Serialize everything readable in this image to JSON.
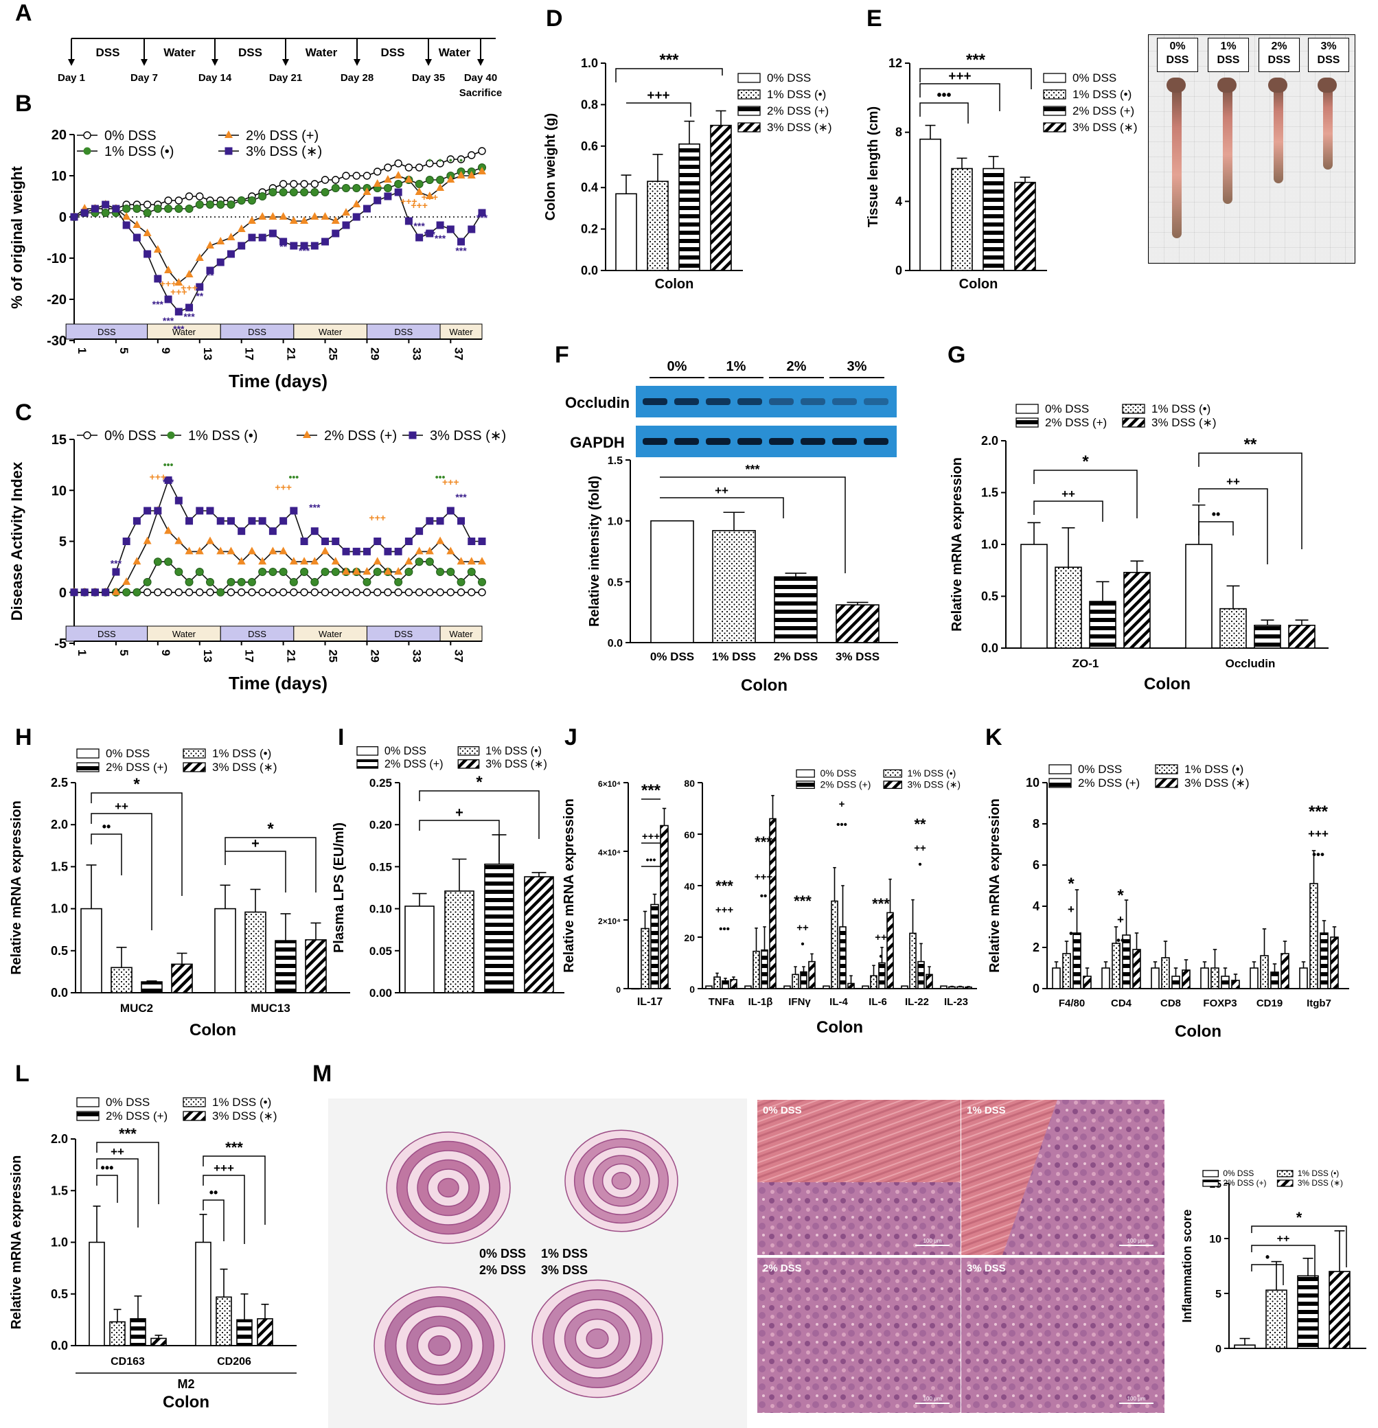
{
  "panel_labels": [
    "A",
    "B",
    "C",
    "D",
    "E",
    "F",
    "G",
    "H",
    "I",
    "J",
    "K",
    "L",
    "M"
  ],
  "groups": [
    "0% DSS",
    "1% DSS (•)",
    "2% DSS (+)",
    "3% DSS (∗)"
  ],
  "colors": {
    "g0": "#000000",
    "g1": "#3a8a2a",
    "g2": "#f08a24",
    "g3": "#3b1f8c",
    "dss_band": "#c9c6ee",
    "water_band": "#f6ecd7"
  },
  "timeline": {
    "segments": [
      "DSS",
      "Water",
      "DSS",
      "Water",
      "DSS",
      "Water"
    ],
    "days": [
      "Day 1",
      "Day 7",
      "Day 14",
      "Day 21",
      "Day 28",
      "Day 35",
      "Day 40"
    ],
    "end_note": "Sacrifice"
  },
  "chart_data": [
    {
      "panel": "B",
      "type": "line",
      "xlabel": "Time (days)",
      "ylabel": "% of original weight",
      "xlim": [
        1,
        40
      ],
      "ylim": [
        -30,
        20
      ],
      "xticks": [
        1,
        5,
        9,
        13,
        17,
        21,
        25,
        29,
        33,
        37
      ],
      "yticks": [
        -30,
        -20,
        -10,
        0,
        10,
        20
      ],
      "legend": [
        "0% DSS",
        "1% DSS (•)",
        "2% DSS (+)",
        "3% DSS (∗)"
      ],
      "bands": [
        "DSS",
        "Water",
        "DSS",
        "Water",
        "DSS",
        "Water"
      ],
      "series": [
        {
          "name": "0% DSS",
          "values": [
            0,
            1,
            2,
            2,
            2,
            3,
            3,
            3,
            3,
            4,
            4,
            5,
            5,
            4,
            4,
            4,
            4,
            5,
            6,
            7,
            8,
            8,
            8,
            8,
            9,
            9,
            10,
            10,
            10,
            11,
            12,
            13,
            12,
            12,
            13,
            13,
            14,
            14,
            15,
            16
          ]
        },
        {
          "name": "1% DSS (•)",
          "values": [
            0,
            1,
            1,
            1,
            1,
            2,
            2,
            1,
            2,
            2,
            2,
            2,
            3,
            3,
            3,
            3,
            4,
            4,
            5,
            6,
            6,
            6,
            6,
            6,
            6,
            7,
            7,
            7,
            7,
            7,
            7,
            8,
            9,
            8,
            9,
            9,
            10,
            11,
            11,
            12
          ]
        },
        {
          "name": "2% DSS (+)",
          "values": [
            0,
            2,
            2,
            3,
            2,
            0,
            -2,
            -4,
            -8,
            -13,
            -16,
            -14,
            -10,
            -7,
            -6,
            -5,
            -3,
            -1,
            0,
            0,
            0,
            -1,
            -1,
            0,
            0,
            -1,
            1,
            3,
            6,
            8,
            9,
            10,
            9,
            6,
            5,
            7,
            9,
            10,
            10,
            11
          ]
        },
        {
          "name": "3% DSS (∗)",
          "values": [
            0,
            1,
            2,
            3,
            2,
            -2,
            -5,
            -9,
            -15,
            -20,
            -23,
            -22,
            -17,
            -13,
            -11,
            -9,
            -7,
            -5,
            -5,
            -4,
            -6,
            -7,
            -7,
            -7,
            -6,
            -4,
            -2,
            0,
            2,
            4,
            5,
            6,
            -1,
            -5,
            -4,
            -2,
            -3,
            -6,
            -3,
            1
          ]
        }
      ]
    },
    {
      "panel": "C",
      "type": "line",
      "xlabel": "Time (days)",
      "ylabel": "Disease Activity Index",
      "xlim": [
        1,
        40
      ],
      "ylim": [
        -5,
        15
      ],
      "xticks": [
        1,
        5,
        9,
        13,
        17,
        21,
        25,
        29,
        33,
        37
      ],
      "yticks": [
        -5,
        0,
        5,
        10,
        15
      ],
      "legend": [
        "0% DSS",
        "1% DSS (•)",
        "2% DSS (+)",
        "3% DSS (∗)"
      ],
      "bands": [
        "DSS",
        "Water",
        "DSS",
        "Water",
        "DSS",
        "Water"
      ],
      "series": [
        {
          "name": "0% DSS",
          "values": [
            0,
            0,
            0,
            0,
            0,
            0,
            0,
            0,
            0,
            0,
            0,
            0,
            0,
            0,
            0,
            0,
            0,
            0,
            0,
            0,
            0,
            0,
            0,
            0,
            0,
            0,
            0,
            0,
            0,
            0,
            0,
            0,
            0,
            0,
            0,
            0,
            0,
            0,
            0,
            0
          ]
        },
        {
          "name": "1% DSS (•)",
          "values": [
            0,
            0,
            0,
            0,
            0,
            0,
            0,
            1,
            3,
            3,
            2,
            1,
            2,
            1,
            0,
            1,
            1,
            1,
            2,
            2,
            2,
            1,
            2,
            1,
            2,
            2,
            2,
            2,
            1,
            2,
            2,
            1,
            2,
            3,
            3,
            2,
            2,
            1,
            2,
            1
          ]
        },
        {
          "name": "2% DSS (+)",
          "values": [
            0,
            0,
            0,
            0,
            0,
            1,
            3,
            5,
            8,
            6,
            5,
            4,
            4,
            5,
            4,
            4,
            3,
            4,
            3,
            4,
            4,
            3,
            3,
            3,
            4,
            3,
            2,
            2,
            2,
            3,
            2,
            2,
            3,
            4,
            4,
            5,
            4,
            3,
            3,
            3
          ]
        },
        {
          "name": "3% DSS (∗)",
          "values": [
            0,
            0,
            0,
            0,
            2,
            5,
            7,
            8,
            8,
            11,
            9,
            7,
            8,
            8,
            7,
            7,
            6,
            7,
            7,
            6,
            7,
            8,
            5,
            6,
            5,
            5,
            4,
            4,
            4,
            5,
            4,
            4,
            5,
            6,
            7,
            7,
            8,
            7,
            5,
            5
          ]
        }
      ]
    },
    {
      "panel": "D",
      "type": "bar",
      "categories": [
        "0% DSS",
        "1% DSS (•)",
        "2% DSS (+)",
        "3% DSS (∗)"
      ],
      "values": [
        0.37,
        0.43,
        0.61,
        0.7
      ],
      "errors": [
        0.09,
        0.13,
        0.11,
        0.07
      ],
      "xlabel": "Colon",
      "ylabel": "Colon weight (g)",
      "ylim": [
        0,
        1.0
      ],
      "yticks": [
        "0.0",
        "0.2",
        "0.4",
        "0.6",
        "0.8",
        "1.0"
      ],
      "sig": [
        "+++",
        "***"
      ]
    },
    {
      "panel": "E",
      "type": "bar",
      "categories": [
        "0% DSS",
        "1% DSS (•)",
        "2% DSS (+)",
        "3% DSS (∗)"
      ],
      "values": [
        7.6,
        5.9,
        5.9,
        5.1
      ],
      "errors": [
        0.8,
        0.6,
        0.7,
        0.3
      ],
      "xlabel": "Colon",
      "ylabel": "Tissue length (cm)",
      "ylim": [
        0,
        12
      ],
      "yticks": [
        "0",
        "4",
        "8",
        "12"
      ],
      "sig": [
        "•••",
        "+++",
        "***"
      ]
    },
    {
      "panel": "F",
      "type": "bar",
      "categories": [
        "0% DSS",
        "1% DSS",
        "2% DSS",
        "3% DSS"
      ],
      "values": [
        1.0,
        0.92,
        0.54,
        0.31
      ],
      "errors": [
        0.0,
        0.15,
        0.03,
        0.02
      ],
      "xlabel": "Colon",
      "ylabel": "Relative intensity (fold)",
      "ylim": [
        0,
        1.5
      ],
      "yticks": [
        "0.0",
        "0.5",
        "1.0",
        "1.5"
      ],
      "blot_lanes": [
        "0%",
        "1%",
        "2%",
        "3%"
      ],
      "blot_rows": [
        "Occludin",
        "GAPDH"
      ],
      "sig": [
        "++",
        "***"
      ]
    },
    {
      "panel": "G",
      "type": "bar",
      "categories": [
        "ZO-1",
        "Occludin"
      ],
      "series": [
        {
          "name": "0% DSS",
          "values": [
            1.0,
            1.0
          ],
          "errors": [
            0.21,
            0.38
          ]
        },
        {
          "name": "1% DSS (•)",
          "values": [
            0.78,
            0.38
          ],
          "errors": [
            0.38,
            0.22
          ]
        },
        {
          "name": "2% DSS (+)",
          "values": [
            0.45,
            0.22
          ],
          "errors": [
            0.19,
            0.05
          ]
        },
        {
          "name": "3% DSS (∗)",
          "values": [
            0.73,
            0.22
          ],
          "errors": [
            0.11,
            0.05
          ]
        }
      ],
      "xlabel": "Colon",
      "ylabel": "Relative mRNA expression",
      "ylim": [
        0,
        2.0
      ],
      "yticks": [
        "0.0",
        "0.5",
        "1.0",
        "1.5",
        "2.0"
      ],
      "sig": [
        "++",
        "*",
        "••",
        "++",
        "**"
      ]
    },
    {
      "panel": "H",
      "type": "bar",
      "categories": [
        "MUC2",
        "MUC13"
      ],
      "series": [
        {
          "name": "0% DSS",
          "values": [
            1.0,
            1.0
          ],
          "errors": [
            0.52,
            0.28
          ]
        },
        {
          "name": "1% DSS (•)",
          "values": [
            0.3,
            0.96
          ],
          "errors": [
            0.24,
            0.27
          ]
        },
        {
          "name": "2% DSS (+)",
          "values": [
            0.13,
            0.62
          ],
          "errors": [
            0.01,
            0.32
          ]
        },
        {
          "name": "3% DSS (∗)",
          "values": [
            0.34,
            0.63
          ],
          "errors": [
            0.13,
            0.2
          ]
        }
      ],
      "xlabel": "Colon",
      "ylabel": "Relative mRNA expression",
      "ylim": [
        0,
        2.5
      ],
      "yticks": [
        "0.0",
        "0.5",
        "1.0",
        "1.5",
        "2.0",
        "2.5"
      ],
      "sig": [
        "••",
        "++",
        "*",
        "+",
        "*"
      ]
    },
    {
      "panel": "I",
      "type": "bar",
      "categories": [
        "0% DSS",
        "1% DSS (•)",
        "2% DSS (+)",
        "3% DSS (∗)"
      ],
      "values": [
        0.103,
        0.121,
        0.153,
        0.138
      ],
      "errors": [
        0.015,
        0.038,
        0.035,
        0.005
      ],
      "xlabel": "",
      "ylabel": "Plasma LPS (EU/ml)",
      "ylim": [
        0,
        0.25
      ],
      "yticks": [
        "0.00",
        "0.05",
        "0.10",
        "0.15",
        "0.20",
        "0.25"
      ],
      "sig": [
        "+",
        "*"
      ]
    },
    {
      "panel": "J1",
      "type": "bar",
      "categories": [
        "IL-17"
      ],
      "series": [
        {
          "name": "0% DSS",
          "values": [
            0
          ],
          "errors": [
            0
          ]
        },
        {
          "name": "1% DSS (•)",
          "values": [
            17500
          ],
          "errors": [
            5000
          ]
        },
        {
          "name": "2% DSS (+)",
          "values": [
            24500
          ],
          "errors": [
            3000
          ]
        },
        {
          "name": "3% DSS (∗)",
          "values": [
            47500
          ],
          "errors": [
            5000
          ]
        }
      ],
      "ylabel": "Relative mRNA expression",
      "ylim": [
        0,
        60000
      ],
      "yticks": [
        "0",
        "2×10⁴",
        "4×10⁴",
        "6×10⁴"
      ],
      "sig": [
        "•••",
        "+++",
        "***"
      ]
    },
    {
      "panel": "J2",
      "type": "bar",
      "categories": [
        "TNFa",
        "IL-1β",
        "IFNγ",
        "IL-4",
        "IL-6",
        "IL-22",
        "IL-23"
      ],
      "series": [
        {
          "name": "0% DSS",
          "values": [
            1,
            1,
            1,
            1,
            1,
            1,
            1
          ],
          "errors": [
            0,
            0,
            0,
            0,
            0,
            0,
            0
          ]
        },
        {
          "name": "1% DSS (•)",
          "values": [
            4.5,
            14.5,
            5.5,
            34,
            5,
            21.5,
            0.7
          ],
          "errors": [
            1.5,
            9,
            3,
            13,
            4,
            13,
            0.2
          ]
        },
        {
          "name": "2% DSS (+)",
          "values": [
            3,
            15,
            6.5,
            24,
            10,
            10.5,
            0.7
          ],
          "errors": [
            1,
            9,
            2,
            16,
            6,
            7,
            0.2
          ]
        },
        {
          "name": "3% DSS (∗)",
          "values": [
            3.5,
            66,
            10.5,
            2,
            29.5,
            5.5,
            0.6
          ],
          "errors": [
            1,
            9,
            3,
            3,
            13,
            3,
            0.2
          ]
        }
      ],
      "xlabel": "Colon",
      "ylim": [
        0,
        80
      ],
      "yticks": [
        "0",
        "20",
        "40",
        "60",
        "80"
      ],
      "sig": [
        "•••",
        "+++",
        "***",
        "••",
        "+++",
        "***",
        "•",
        "++",
        "***",
        "•••",
        "+",
        "•",
        "++",
        "***",
        "•",
        "++",
        "**"
      ]
    },
    {
      "panel": "K",
      "type": "bar",
      "categories": [
        "F4/80",
        "CD4",
        "CD8",
        "FOXP3",
        "CD19",
        "Itgb7"
      ],
      "series": [
        {
          "name": "0% DSS",
          "values": [
            1,
            1,
            1,
            1,
            1,
            1
          ],
          "errors": [
            0.3,
            0.3,
            0.3,
            0.3,
            0.3,
            0.3
          ]
        },
        {
          "name": "1% DSS (•)",
          "values": [
            1.7,
            2.2,
            1.5,
            1,
            1.6,
            5.1
          ],
          "errors": [
            0.6,
            0.8,
            0.8,
            0.9,
            1.3,
            1.6
          ]
        },
        {
          "name": "2% DSS (+)",
          "values": [
            2.7,
            2.6,
            0.6,
            0.6,
            0.8,
            2.7
          ],
          "errors": [
            2.1,
            1.7,
            0.4,
            0.4,
            0.4,
            0.6
          ]
        },
        {
          "name": "3% DSS (∗)",
          "values": [
            0.6,
            1.9,
            0.9,
            0.4,
            1.7,
            2.5
          ],
          "errors": [
            0.4,
            0.8,
            0.5,
            0.3,
            0.6,
            0.5
          ]
        }
      ],
      "xlabel": "Colon",
      "ylabel": "Relative mRNA expression",
      "ylim": [
        0,
        10
      ],
      "yticks": [
        "0",
        "2",
        "4",
        "6",
        "8",
        "10"
      ],
      "sig": [
        "•",
        "+",
        "*",
        "••",
        "+",
        "*",
        "•••",
        "+++",
        "***"
      ]
    },
    {
      "panel": "L",
      "type": "bar",
      "categories": [
        "CD163",
        "CD206"
      ],
      "group_label": "M2",
      "series": [
        {
          "name": "0% DSS",
          "values": [
            1.0,
            1.0
          ],
          "errors": [
            0.35,
            0.27
          ]
        },
        {
          "name": "1% DSS (•)",
          "values": [
            0.23,
            0.47
          ],
          "errors": [
            0.12,
            0.27
          ]
        },
        {
          "name": "2% DSS (+)",
          "values": [
            0.26,
            0.25
          ],
          "errors": [
            0.22,
            0.25
          ]
        },
        {
          "name": "3% DSS (∗)",
          "values": [
            0.07,
            0.26
          ],
          "errors": [
            0.03,
            0.14
          ]
        }
      ],
      "xlabel": "Colon",
      "ylabel": "Relative mRNA expression",
      "ylim": [
        0,
        2.0
      ],
      "yticks": [
        "0.0",
        "0.5",
        "1.0",
        "1.5",
        "2.0"
      ],
      "sig": [
        "•••",
        "++",
        "***",
        "••",
        "+++",
        "***"
      ]
    },
    {
      "panel": "M",
      "type": "bar",
      "categories": [
        "0% DSS",
        "1% DSS (•)",
        "2% DSS (+)",
        "3% DSS (∗)"
      ],
      "values": [
        0.3,
        5.3,
        6.6,
        7.0
      ],
      "errors": [
        0.6,
        2.6,
        1.6,
        3.7
      ],
      "ylabel": "Inflammation score",
      "ylim": [
        0,
        15
      ],
      "yticks": [
        "0",
        "5",
        "10",
        "15"
      ],
      "sig": [
        "•",
        "++",
        "*"
      ]
    }
  ],
  "photo_E": {
    "labels": [
      "0%\nDSS",
      "1%\nDSS",
      "2%\nDSS",
      "3%\nDSS"
    ]
  },
  "histology": {
    "overview_labels": [
      "0% DSS",
      "1% DSS",
      "2% DSS",
      "3% DSS"
    ],
    "zoom_labels": [
      "0% DSS",
      "1% DSS",
      "2% DSS",
      "3% DSS"
    ],
    "scale_bar": "100 μm"
  }
}
